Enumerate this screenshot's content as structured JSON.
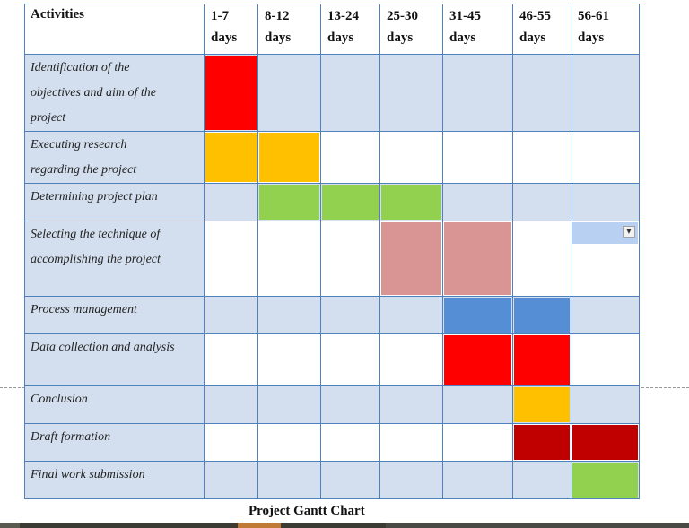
{
  "table": {
    "header": {
      "activities": "Activities",
      "periods": [
        {
          "range": "1-7",
          "unit": "days"
        },
        {
          "range": "8-12",
          "unit": "days"
        },
        {
          "range": "13-24",
          "unit": "days"
        },
        {
          "range": "25-30",
          "unit": "days"
        },
        {
          "range": "31-45",
          "unit": "days"
        },
        {
          "range": "46-55",
          "unit": "days"
        },
        {
          "range": "56-61",
          "unit": "days"
        }
      ]
    },
    "rows": [
      {
        "lines": [
          "Identification of the",
          "objectives and aim of the",
          "project"
        ],
        "bars": {
          "0": "#ff0000"
        }
      },
      {
        "lines": [
          "Executing research",
          "regarding the project"
        ],
        "bars": {
          "0": "#ffc000",
          "1": "#ffc000"
        }
      },
      {
        "lines": [
          "Determining project plan"
        ],
        "bars": {
          "1": "#92d050",
          "2": "#92d050",
          "3": "#92d050"
        }
      },
      {
        "lines": [
          "Selecting the technique of",
          "accomplishing the project"
        ],
        "bars": {
          "3": "#d99594",
          "4": "#d99594"
        }
      },
      {
        "lines": [
          "Process management"
        ],
        "bars": {
          "4": "#558ed5",
          "5": "#558ed5"
        }
      },
      {
        "lines": [
          "Data collection and analysis"
        ],
        "bars": {
          "4": "#ff0000",
          "5": "#ff0000"
        }
      },
      {
        "lines": [
          "Conclusion"
        ],
        "bars": {
          "5": "#ffc000"
        }
      },
      {
        "lines": [
          "Draft formation"
        ],
        "bars": {
          "5": "#c00000",
          "6": "#c00000"
        }
      },
      {
        "lines": [
          "Final work submission"
        ],
        "bars": {
          "6": "#92d050"
        }
      }
    ]
  },
  "caption": "Project Gantt Chart",
  "colors": {
    "row_shade": "#d3dfee",
    "border": "#4f81bd",
    "dropdown_cell": "#b8d1f3"
  },
  "icons": {
    "dropdown": "chevron-down-icon"
  }
}
